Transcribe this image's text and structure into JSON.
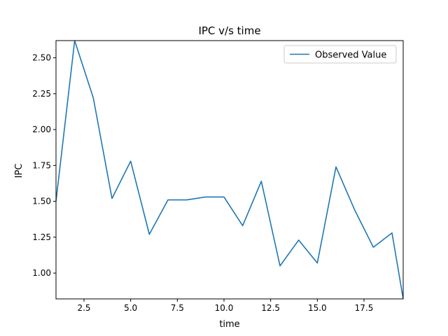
{
  "chart_data": {
    "type": "line",
    "title": "IPC v/s time",
    "xlabel": "time",
    "ylabel": "IPC",
    "xlim": [
      1,
      19.6
    ],
    "ylim": [
      0.82,
      2.62
    ],
    "xticks": [
      2.5,
      5.0,
      7.5,
      10.0,
      12.5,
      15.0,
      17.5
    ],
    "xtick_labels": [
      "2.5",
      "5.0",
      "7.5",
      "10.0",
      "12.5",
      "15.0",
      "17.5"
    ],
    "yticks": [
      1.0,
      1.25,
      1.5,
      1.75,
      2.0,
      2.25,
      2.5
    ],
    "ytick_labels": [
      "1.00",
      "1.25",
      "1.50",
      "1.75",
      "2.00",
      "2.25",
      "2.50"
    ],
    "legend_position": "top-right",
    "grid": false,
    "series": [
      {
        "name": "Observed Value",
        "color": "#1f77b4",
        "x": [
          1,
          2,
          3,
          4,
          5,
          6,
          7,
          8,
          9,
          10,
          11,
          12,
          13,
          14,
          15,
          16,
          17,
          18,
          19,
          19.6
        ],
        "y": [
          1.5,
          2.62,
          2.22,
          1.52,
          1.78,
          1.27,
          1.51,
          1.51,
          1.53,
          1.53,
          1.33,
          1.64,
          1.05,
          1.23,
          1.07,
          1.74,
          1.44,
          1.18,
          1.28,
          0.82
        ]
      }
    ]
  }
}
